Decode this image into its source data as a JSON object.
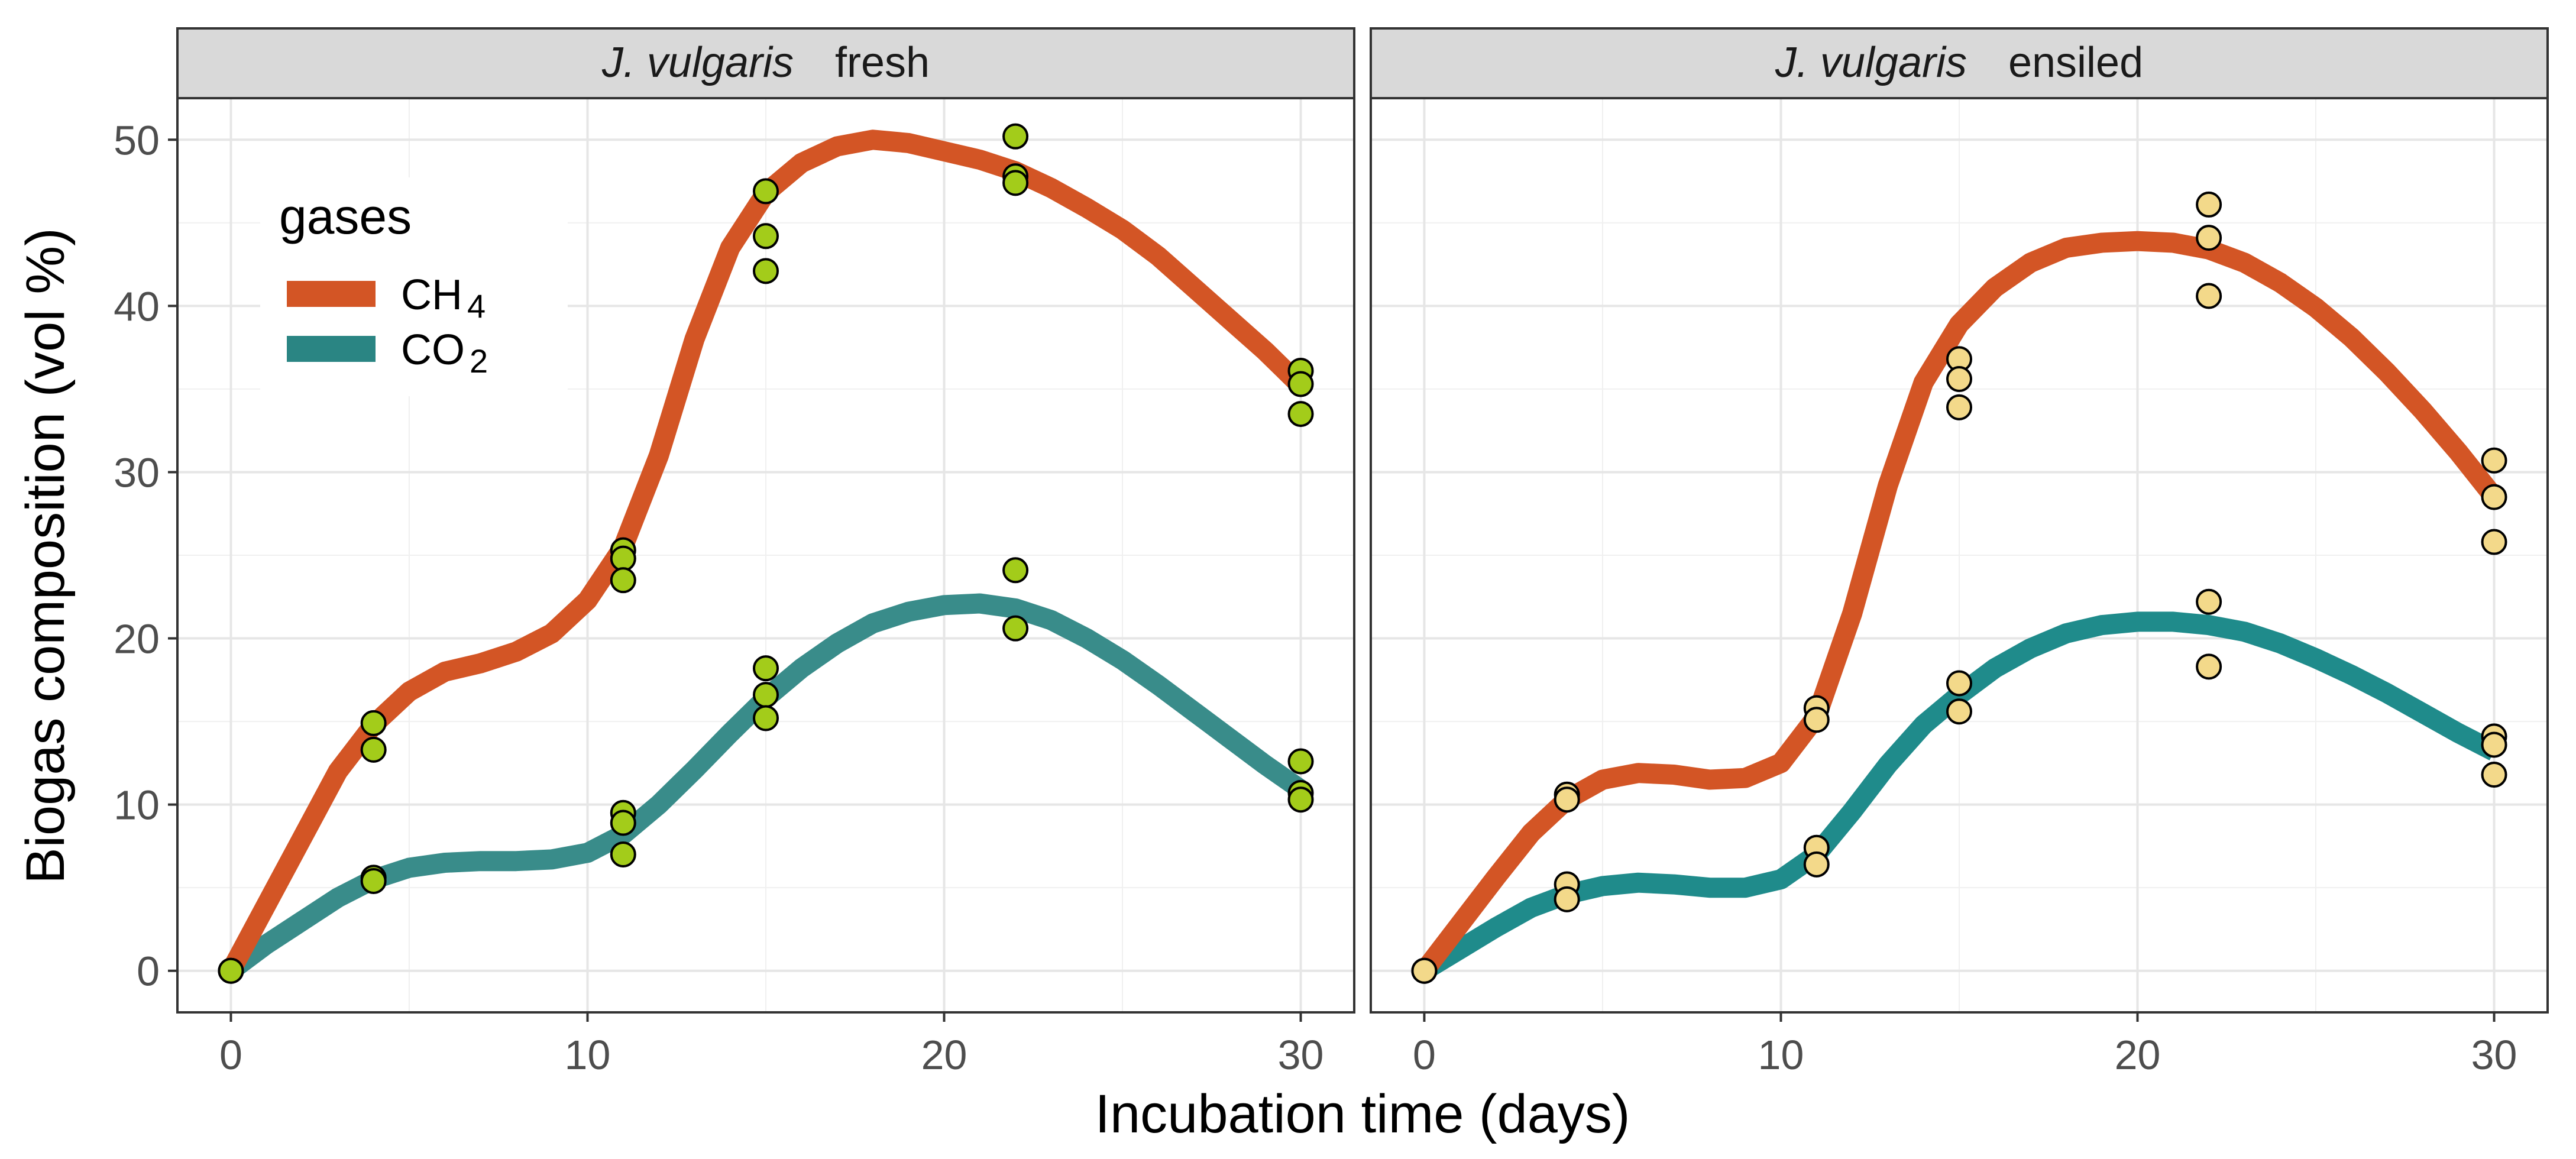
{
  "chart_data": {
    "type": "scatter",
    "xlabel": "Incubation time (days)",
    "ylabel": "Biogas composition (vol %)",
    "xlim": [
      -1.5,
      31.5
    ],
    "ylim": [
      -2.5,
      52.5
    ],
    "x_ticks": [
      "0",
      "10",
      "20",
      "30"
    ],
    "y_ticks": [
      "0",
      "10",
      "20",
      "30",
      "40",
      "50"
    ],
    "x_tick_values": [
      0,
      10,
      20,
      30
    ],
    "y_tick_values": [
      0,
      10,
      20,
      30,
      40,
      50
    ],
    "grid": true,
    "legend": {
      "title": "gases",
      "placement": "top-left inside first panel",
      "entries": [
        {
          "key": "CH4",
          "base": "CH",
          "sub": "4",
          "color": "#D35525"
        },
        {
          "key": "CO2",
          "base": "CO",
          "sub": "2",
          "color": "#2A8583"
        }
      ]
    },
    "panels": [
      {
        "species": "J. vulgaris",
        "condition": "fresh",
        "point_color": "#A3CC1A",
        "curves": {
          "CH4": {
            "color": "#D35525",
            "x": [
              0,
              1,
              2,
              3,
              4,
              5,
              6,
              7,
              8,
              9,
              10,
              11,
              12,
              13,
              14,
              15,
              16,
              17,
              18,
              19,
              20,
              21,
              22,
              23,
              24,
              25,
              26,
              27,
              28,
              29,
              30
            ],
            "y": [
              0,
              4,
              8,
              12,
              14.8,
              16.8,
              18,
              18.5,
              19.2,
              20.3,
              22.3,
              25.5,
              31,
              38,
              43.5,
              46.8,
              48.6,
              49.6,
              50,
              49.8,
              49.3,
              48.8,
              48.1,
              47.1,
              45.9,
              44.6,
              43,
              41.1,
              39.2,
              37.3,
              35.2
            ]
          },
          "CO2": {
            "color": "#398C8A",
            "x": [
              0,
              1,
              2,
              3,
              4,
              5,
              6,
              7,
              8,
              9,
              10,
              11,
              12,
              13,
              14,
              15,
              16,
              17,
              18,
              19,
              20,
              21,
              22,
              23,
              24,
              25,
              26,
              27,
              28,
              29,
              30
            ],
            "y": [
              0,
              1.6,
              3,
              4.4,
              5.5,
              6.2,
              6.5,
              6.6,
              6.6,
              6.7,
              7.1,
              8.2,
              10,
              12.1,
              14.3,
              16.4,
              18.2,
              19.7,
              20.9,
              21.6,
              22,
              22.1,
              21.8,
              21.1,
              20,
              18.7,
              17.2,
              15.6,
              14,
              12.4,
              10.9
            ]
          }
        },
        "points": {
          "CH4": [
            [
              0,
              0
            ],
            [
              4,
              14.9
            ],
            [
              4,
              13.3
            ],
            [
              11,
              25.3
            ],
            [
              11,
              24.8
            ],
            [
              11,
              23.5
            ],
            [
              15,
              46.9
            ],
            [
              15,
              44.2
            ],
            [
              15,
              42.1
            ],
            [
              22,
              50.2
            ],
            [
              22,
              47.8
            ],
            [
              22,
              47.4
            ],
            [
              30,
              36.1
            ],
            [
              30,
              35.3
            ],
            [
              30,
              33.5
            ]
          ],
          "CO2": [
            [
              0,
              0
            ],
            [
              4,
              5.6
            ],
            [
              4,
              5.4
            ],
            [
              11,
              9.5
            ],
            [
              11,
              8.9
            ],
            [
              11,
              7
            ],
            [
              15,
              18.2
            ],
            [
              15,
              16.6
            ],
            [
              15,
              15.2
            ],
            [
              22,
              24.1
            ],
            [
              22,
              20.6
            ],
            [
              30,
              12.6
            ],
            [
              30,
              10.7
            ],
            [
              30,
              10.3
            ]
          ]
        }
      },
      {
        "species": "J. vulgaris",
        "condition": "ensiled",
        "point_color": "#F3D98A",
        "curves": {
          "CH4": {
            "color": "#D35525",
            "x": [
              0,
              1,
              2,
              3,
              4,
              5,
              6,
              7,
              8,
              9,
              10,
              11,
              12,
              13,
              14,
              15,
              16,
              17,
              18,
              19,
              20,
              21,
              22,
              23,
              24,
              25,
              26,
              27,
              28,
              29,
              30
            ],
            "y": [
              0,
              2.8,
              5.6,
              8.3,
              10.3,
              11.5,
              11.9,
              11.8,
              11.5,
              11.6,
              12.5,
              15.3,
              21.5,
              29.2,
              35.4,
              38.9,
              41.1,
              42.6,
              43.5,
              43.8,
              43.9,
              43.8,
              43.4,
              42.6,
              41.4,
              39.9,
              38.1,
              36,
              33.7,
              31.2,
              28.5
            ]
          },
          "CO2": {
            "color": "#1F8B8B",
            "x": [
              0,
              1,
              2,
              3,
              4,
              5,
              6,
              7,
              8,
              9,
              10,
              11,
              12,
              13,
              14,
              15,
              16,
              17,
              18,
              19,
              20,
              21,
              22,
              23,
              24,
              25,
              26,
              27,
              28,
              29,
              30
            ],
            "y": [
              0,
              1.3,
              2.6,
              3.8,
              4.6,
              5.1,
              5.3,
              5.2,
              5,
              5,
              5.5,
              7,
              9.6,
              12.4,
              14.8,
              16.6,
              18.2,
              19.4,
              20.3,
              20.8,
              21,
              21,
              20.8,
              20.4,
              19.7,
              18.8,
              17.8,
              16.7,
              15.5,
              14.3,
              13.2
            ]
          }
        },
        "points": {
          "CH4": [
            [
              0,
              0
            ],
            [
              4,
              10.6
            ],
            [
              4,
              10.3
            ],
            [
              11,
              15.8
            ],
            [
              11,
              15.1
            ],
            [
              15,
              36.8
            ],
            [
              15,
              35.6
            ],
            [
              15,
              33.9
            ],
            [
              22,
              46.1
            ],
            [
              22,
              44.1
            ],
            [
              22,
              40.6
            ],
            [
              30,
              30.7
            ],
            [
              30,
              28.5
            ],
            [
              30,
              25.8
            ]
          ],
          "CO2": [
            [
              0,
              0
            ],
            [
              4,
              5.2
            ],
            [
              4,
              4.3
            ],
            [
              11,
              7.4
            ],
            [
              11,
              6.4
            ],
            [
              15,
              17.3
            ],
            [
              15,
              15.6
            ],
            [
              22,
              22.2
            ],
            [
              22,
              18.3
            ],
            [
              30,
              14.1
            ],
            [
              30,
              13.6
            ],
            [
              30,
              11.8
            ]
          ]
        }
      }
    ]
  }
}
